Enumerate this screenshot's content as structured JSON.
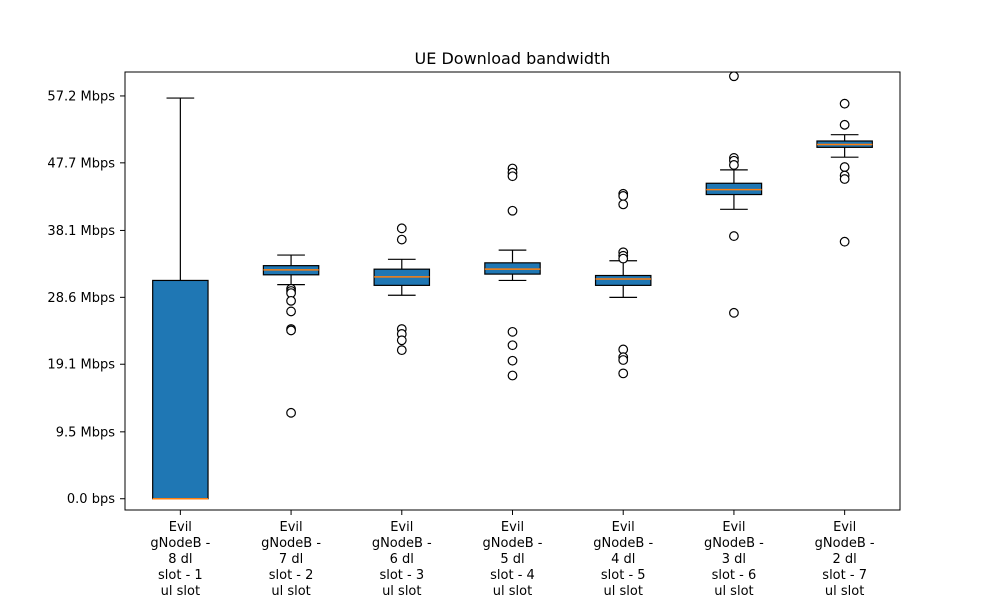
{
  "chart_data": {
    "type": "boxplot",
    "title": "UE Download bandwidth",
    "xlabel": "",
    "ylabel": "",
    "y_unit": "Mbps",
    "ylim": [
      -1.6,
      60.6
    ],
    "y_ticks": [
      0.0,
      9.5,
      19.1,
      28.6,
      38.1,
      47.7,
      57.2
    ],
    "y_tick_labels": [
      "0.0 bps",
      "9.5 Mbps",
      "19.1 Mbps",
      "28.6 Mbps",
      "38.1 Mbps",
      "47.7 Mbps",
      "57.2 Mbps"
    ],
    "categories": [
      [
        "Evil",
        "gNodeB -",
        "8 dl",
        "slot - 1",
        "ul slot"
      ],
      [
        "Evil",
        "gNodeB -",
        "7 dl",
        "slot - 2",
        "ul slot"
      ],
      [
        "Evil",
        "gNodeB -",
        "6 dl",
        "slot - 3",
        "ul slot"
      ],
      [
        "Evil",
        "gNodeB -",
        "5 dl",
        "slot - 4",
        "ul slot"
      ],
      [
        "Evil",
        "gNodeB -",
        "4 dl",
        "slot - 5",
        "ul slot"
      ],
      [
        "Evil",
        "gNodeB -",
        "3 dl",
        "slot - 6",
        "ul slot"
      ],
      [
        "Evil",
        "gNodeB -",
        "2 dl",
        "slot - 7",
        "ul slot"
      ]
    ],
    "boxes": [
      {
        "whisker_low": 0.0,
        "q1": 0.0,
        "median": 0.0,
        "q3": 31.0,
        "whisker_high": 56.9,
        "outliers": []
      },
      {
        "whisker_low": 30.4,
        "q1": 31.8,
        "median": 32.5,
        "q3": 33.1,
        "whisker_high": 34.6,
        "outliers": [
          29.8,
          29.5,
          29.2,
          28.1,
          26.6,
          24.1,
          23.9,
          12.2
        ]
      },
      {
        "whisker_low": 28.9,
        "q1": 30.3,
        "median": 31.5,
        "q3": 32.6,
        "whisker_high": 34.0,
        "outliers": [
          38.4,
          36.8,
          24.1,
          23.4,
          22.5,
          21.1
        ]
      },
      {
        "whisker_low": 31.0,
        "q1": 31.9,
        "median": 32.6,
        "q3": 33.5,
        "whisker_high": 35.3,
        "outliers": [
          46.9,
          46.3,
          45.8,
          40.9,
          23.7,
          21.8,
          19.6,
          17.5
        ]
      },
      {
        "whisker_low": 28.6,
        "q1": 30.3,
        "median": 31.2,
        "q3": 31.7,
        "whisker_high": 33.8,
        "outliers": [
          43.3,
          43.0,
          41.8,
          35.0,
          34.5,
          34.1,
          21.2,
          20.1,
          19.7,
          17.8
        ]
      },
      {
        "whisker_low": 41.1,
        "q1": 43.2,
        "median": 43.9,
        "q3": 44.8,
        "whisker_high": 46.7,
        "outliers": [
          60.0,
          48.4,
          48.0,
          47.4,
          37.3,
          26.4
        ]
      },
      {
        "whisker_low": 48.5,
        "q1": 49.9,
        "median": 50.3,
        "q3": 50.8,
        "whisker_high": 51.7,
        "outliers": [
          56.1,
          53.1,
          47.1,
          45.9,
          45.4,
          36.5
        ]
      }
    ],
    "colors": {
      "box_fill": "#1f77b4",
      "box_edge": "#000000",
      "median": "#ff7f0e",
      "whisker": "#000000",
      "outlier_edge": "#000000",
      "outlier_fill": "#ffffff"
    },
    "grid": false,
    "legend": "none"
  }
}
